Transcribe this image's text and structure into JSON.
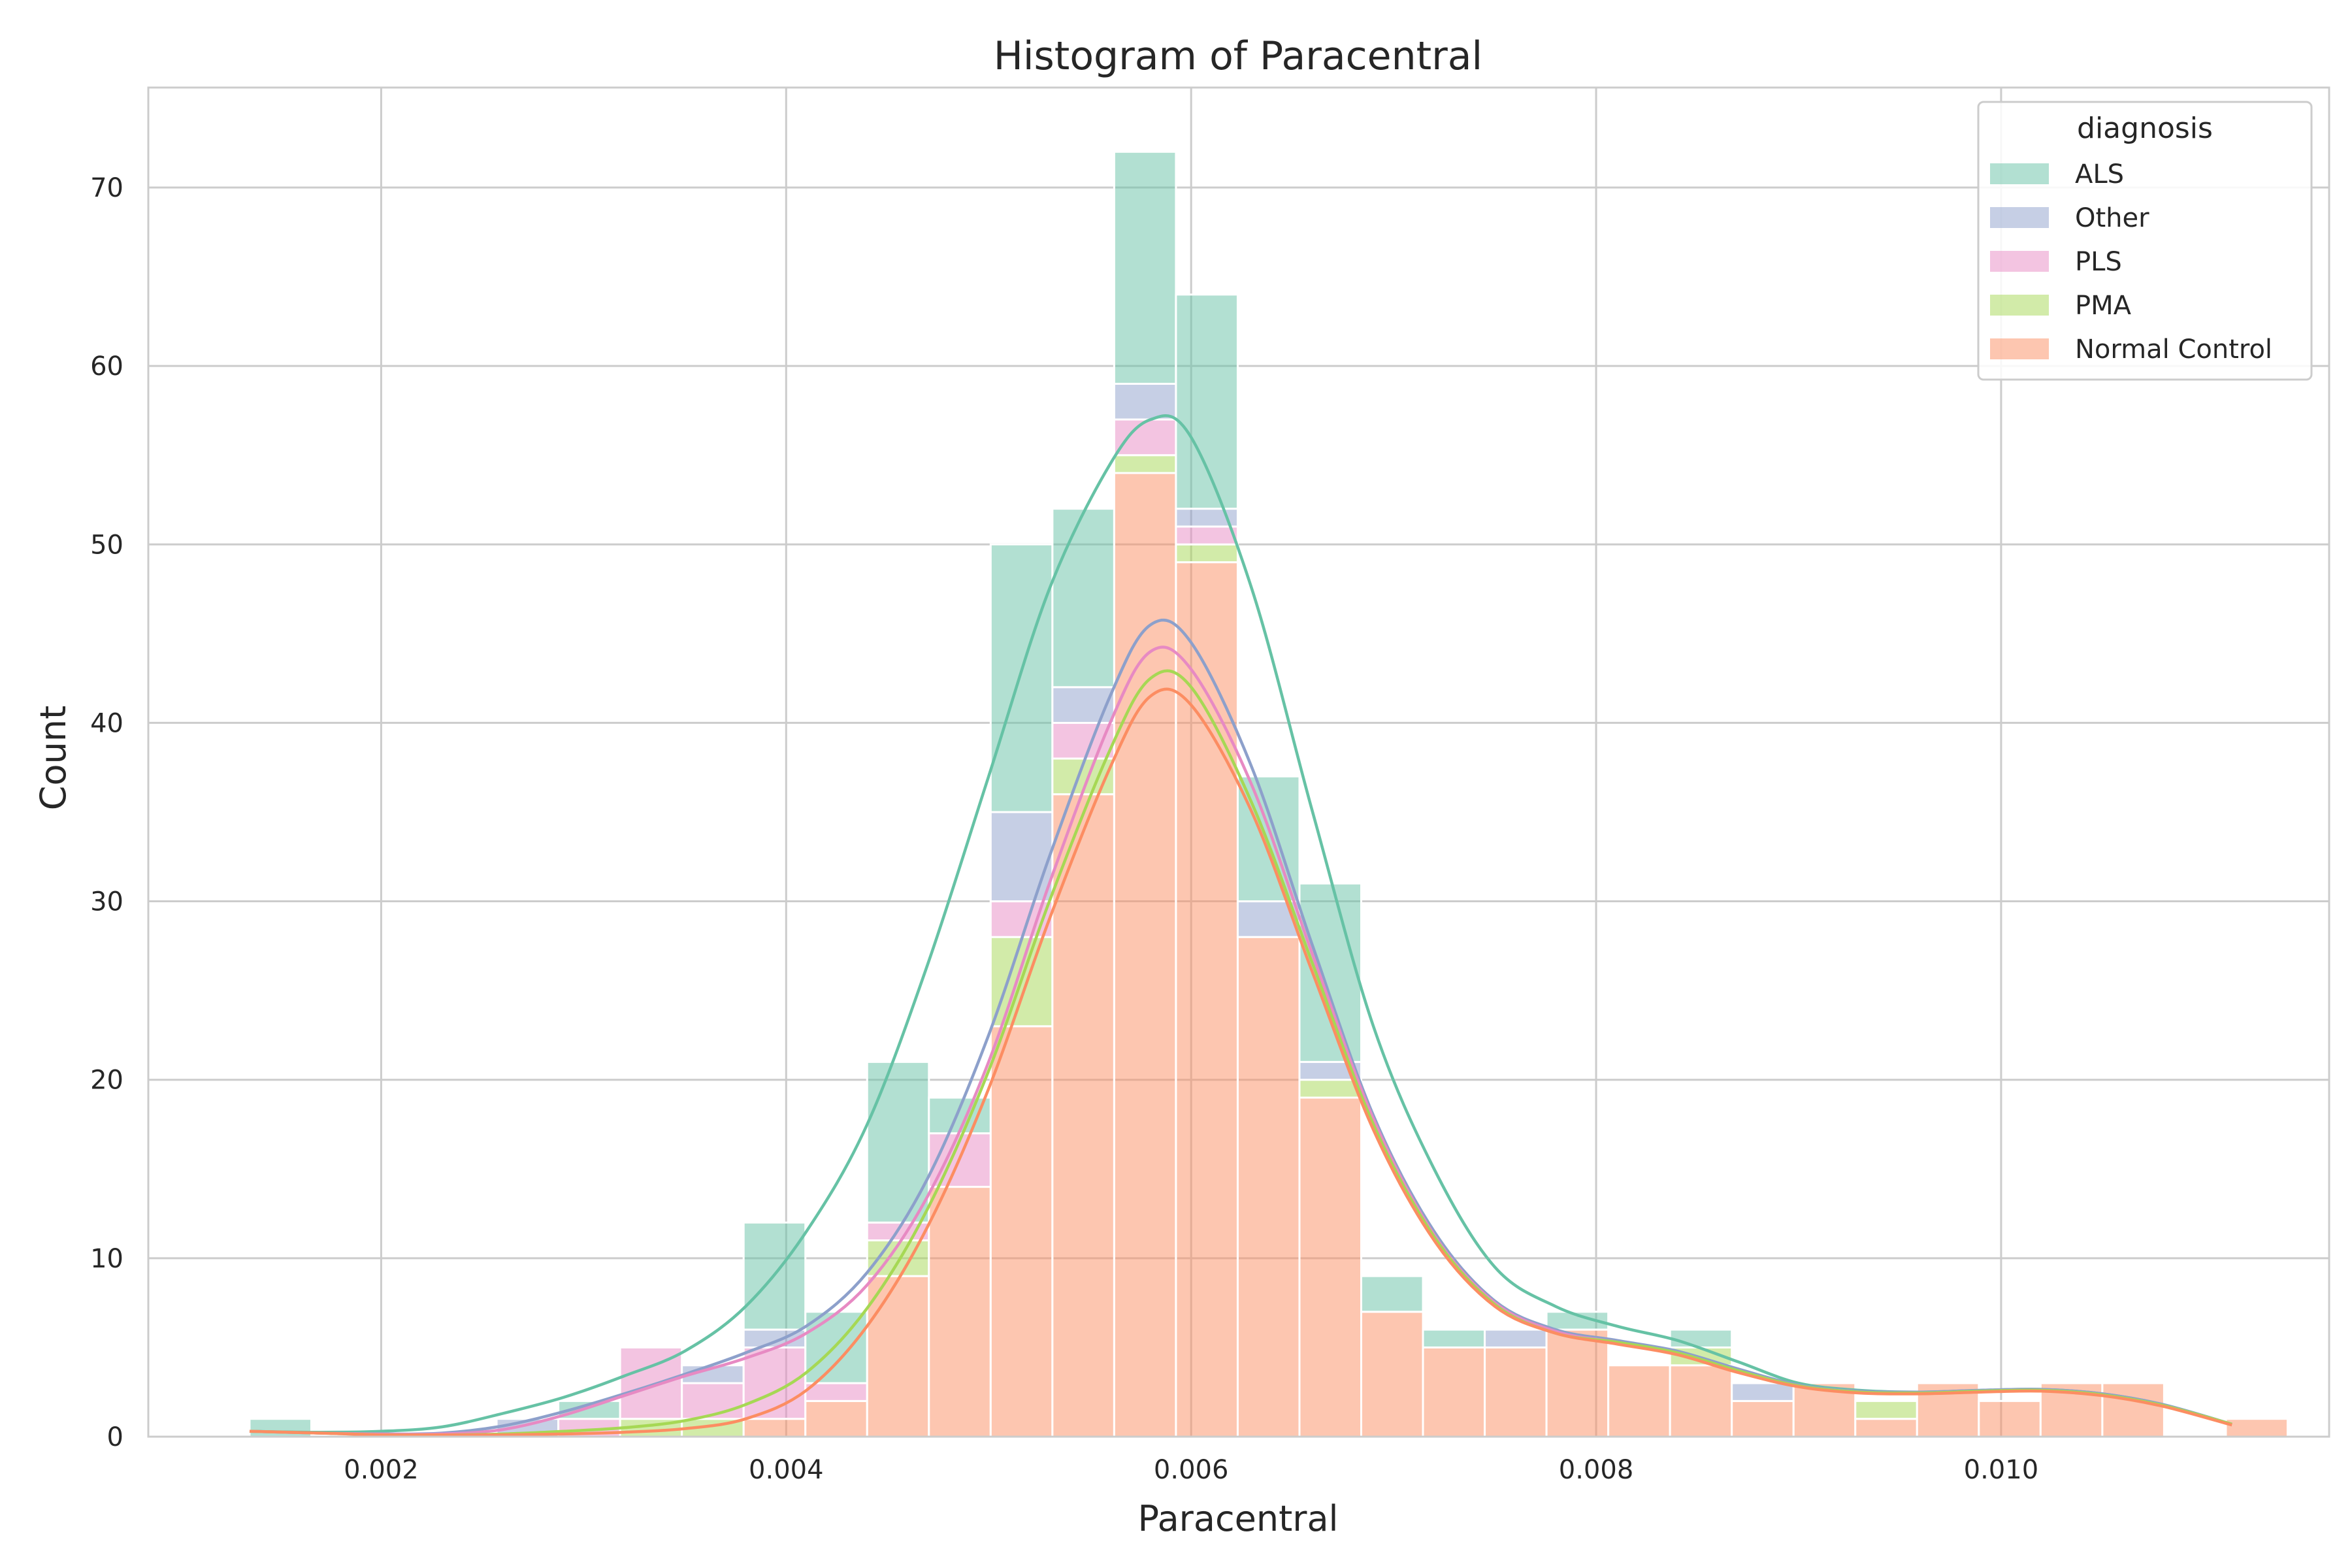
{
  "chart_data": {
    "type": "histogram",
    "title": "Histogram of Paracentral",
    "xlabel": "Paracentral",
    "ylabel": "Count",
    "xlim": [
      0.00085,
      0.01162
    ],
    "ylim": [
      0,
      75.6
    ],
    "xticks": [
      0.002,
      0.004,
      0.006,
      0.008,
      0.01
    ],
    "xtick_labels": [
      "0.002",
      "0.004",
      "0.006",
      "0.008",
      "0.010"
    ],
    "yticks": [
      0,
      10,
      20,
      30,
      40,
      50,
      60,
      70
    ],
    "ytick_labels": [
      "0",
      "10",
      "20",
      "30",
      "40",
      "50",
      "60",
      "70"
    ],
    "grid": true,
    "stacked": true,
    "legend": {
      "title": "diagnosis",
      "placement": "top-right"
    },
    "bin_edges": [
      0.00135,
      0.001655,
      0.00196,
      0.002265,
      0.00257,
      0.002875,
      0.00318,
      0.003485,
      0.00379,
      0.004095,
      0.0044,
      0.004705,
      0.00501,
      0.005315,
      0.00562,
      0.005925,
      0.00623,
      0.006535,
      0.00684,
      0.007145,
      0.00745,
      0.007755,
      0.00806,
      0.008365,
      0.00867,
      0.008975,
      0.00928,
      0.009585,
      0.00989,
      0.010195,
      0.0105,
      0.010805,
      0.01111,
      0.011415
    ],
    "stack_order": [
      "Normal Control",
      "PMA",
      "PLS",
      "Other",
      "ALS"
    ],
    "series": [
      {
        "name": "ALS",
        "color": "#66c2a5",
        "values": [
          1,
          0,
          0,
          0,
          0,
          1,
          0,
          0,
          6,
          4,
          9,
          2,
          15,
          10,
          13,
          12,
          7,
          10,
          2,
          1,
          0,
          1,
          0,
          1,
          0,
          0,
          0,
          0,
          0,
          0,
          0,
          0,
          0
        ],
        "kde": [
          [
            0.00135,
            0.3
          ],
          [
            0.0017,
            0.25
          ],
          [
            0.002,
            0.3
          ],
          [
            0.0023,
            0.55
          ],
          [
            0.0026,
            1.3
          ],
          [
            0.0029,
            2.2
          ],
          [
            0.0032,
            3.4
          ],
          [
            0.0035,
            4.8
          ],
          [
            0.0038,
            7.3
          ],
          [
            0.0041,
            11.5
          ],
          [
            0.0044,
            17.5
          ],
          [
            0.0047,
            26.5
          ],
          [
            0.005,
            37
          ],
          [
            0.0053,
            47.5
          ],
          [
            0.0056,
            54.5
          ],
          [
            0.0058,
            57
          ],
          [
            0.006,
            56
          ],
          [
            0.0063,
            47.5
          ],
          [
            0.0066,
            35
          ],
          [
            0.0069,
            23
          ],
          [
            0.0072,
            15
          ],
          [
            0.0075,
            9.5
          ],
          [
            0.0078,
            7.3
          ],
          [
            0.0081,
            6.2
          ],
          [
            0.0084,
            5.4
          ],
          [
            0.0087,
            4.2
          ],
          [
            0.009,
            3
          ],
          [
            0.0093,
            2.6
          ],
          [
            0.0096,
            2.5
          ],
          [
            0.0099,
            2.6
          ],
          [
            0.0102,
            2.65
          ],
          [
            0.0105,
            2.4
          ],
          [
            0.0108,
            1.8
          ],
          [
            0.01114,
            0.7
          ]
        ]
      },
      {
        "name": "Other",
        "color": "#8da0cb",
        "values": [
          0,
          0,
          0,
          0,
          1,
          0,
          0,
          1,
          1,
          0,
          0,
          0,
          5,
          2,
          2,
          1,
          2,
          1,
          0,
          0,
          1,
          0,
          0,
          0,
          1,
          0,
          0,
          0,
          0,
          0,
          0,
          0,
          0
        ],
        "kde": [
          [
            0.00135,
            0.3
          ],
          [
            0.0017,
            0.2
          ],
          [
            0.002,
            0.15
          ],
          [
            0.0023,
            0.2
          ],
          [
            0.0026,
            0.6
          ],
          [
            0.0029,
            1.4
          ],
          [
            0.0032,
            2.4
          ],
          [
            0.0035,
            3.5
          ],
          [
            0.0038,
            4.7
          ],
          [
            0.0041,
            6.2
          ],
          [
            0.0044,
            9.2
          ],
          [
            0.0047,
            14.5
          ],
          [
            0.005,
            22.5
          ],
          [
            0.0053,
            32.5
          ],
          [
            0.0056,
            41.5
          ],
          [
            0.0058,
            45.5
          ],
          [
            0.006,
            44.5
          ],
          [
            0.0063,
            37.5
          ],
          [
            0.0066,
            27.5
          ],
          [
            0.0069,
            18
          ],
          [
            0.0072,
            11.5
          ],
          [
            0.0075,
            7.6
          ],
          [
            0.0078,
            6
          ],
          [
            0.0081,
            5.4
          ],
          [
            0.0084,
            4.8
          ],
          [
            0.0087,
            3.8
          ],
          [
            0.009,
            2.9
          ],
          [
            0.0093,
            2.55
          ],
          [
            0.0096,
            2.5
          ],
          [
            0.0099,
            2.6
          ],
          [
            0.0102,
            2.65
          ],
          [
            0.0105,
            2.4
          ],
          [
            0.0108,
            1.8
          ],
          [
            0.01114,
            0.7
          ]
        ]
      },
      {
        "name": "PLS",
        "color": "#e78ac3",
        "values": [
          0,
          0,
          0,
          0,
          0,
          1,
          4,
          2,
          4,
          1,
          1,
          3,
          2,
          2,
          2,
          1,
          0,
          0,
          0,
          0,
          0,
          0,
          0,
          0,
          0,
          0,
          0,
          0,
          0,
          0,
          0,
          0,
          0
        ],
        "kde": [
          [
            0.00135,
            0.3
          ],
          [
            0.0017,
            0.2
          ],
          [
            0.002,
            0.15
          ],
          [
            0.0023,
            0.15
          ],
          [
            0.0026,
            0.4
          ],
          [
            0.0029,
            1.2
          ],
          [
            0.0032,
            2.3
          ],
          [
            0.0035,
            3.4
          ],
          [
            0.0038,
            4.4
          ],
          [
            0.0041,
            5.8
          ],
          [
            0.0044,
            8.5
          ],
          [
            0.0047,
            13.5
          ],
          [
            0.005,
            21
          ],
          [
            0.0053,
            31
          ],
          [
            0.0056,
            40
          ],
          [
            0.0058,
            44
          ],
          [
            0.006,
            43
          ],
          [
            0.0063,
            36.5
          ],
          [
            0.0066,
            27
          ],
          [
            0.0069,
            17.8
          ],
          [
            0.0072,
            11.3
          ],
          [
            0.0075,
            7.5
          ],
          [
            0.0078,
            5.9
          ],
          [
            0.0081,
            5.3
          ],
          [
            0.0084,
            4.7
          ],
          [
            0.0087,
            3.7
          ],
          [
            0.009,
            2.85
          ],
          [
            0.0093,
            2.5
          ],
          [
            0.0096,
            2.45
          ],
          [
            0.0099,
            2.55
          ],
          [
            0.0102,
            2.6
          ],
          [
            0.0105,
            2.35
          ],
          [
            0.0108,
            1.75
          ],
          [
            0.01114,
            0.7
          ]
        ]
      },
      {
        "name": "PMA",
        "color": "#a6d854",
        "values": [
          0,
          0,
          0,
          0,
          0,
          0,
          1,
          1,
          0,
          0,
          2,
          0,
          5,
          2,
          1,
          1,
          0,
          1,
          0,
          0,
          0,
          0,
          0,
          1,
          0,
          0,
          1,
          0,
          0,
          0,
          0,
          0,
          0
        ],
        "kde": [
          [
            0.00135,
            0.3
          ],
          [
            0.0017,
            0.2
          ],
          [
            0.002,
            0.1
          ],
          [
            0.0023,
            0.1
          ],
          [
            0.0026,
            0.15
          ],
          [
            0.0029,
            0.3
          ],
          [
            0.0032,
            0.5
          ],
          [
            0.0035,
            0.9
          ],
          [
            0.0038,
            1.8
          ],
          [
            0.0041,
            3.6
          ],
          [
            0.0044,
            7.2
          ],
          [
            0.0047,
            12.8
          ],
          [
            0.005,
            20.5
          ],
          [
            0.0053,
            30
          ],
          [
            0.0056,
            38.5
          ],
          [
            0.0058,
            42.5
          ],
          [
            0.006,
            42
          ],
          [
            0.0063,
            35.5
          ],
          [
            0.0066,
            26.5
          ],
          [
            0.0069,
            17.5
          ],
          [
            0.0072,
            11.2
          ],
          [
            0.0075,
            7.4
          ],
          [
            0.0078,
            5.8
          ],
          [
            0.0081,
            5.3
          ],
          [
            0.0084,
            4.7
          ],
          [
            0.0087,
            3.7
          ],
          [
            0.009,
            2.85
          ],
          [
            0.0093,
            2.5
          ],
          [
            0.0096,
            2.45
          ],
          [
            0.0099,
            2.55
          ],
          [
            0.0102,
            2.6
          ],
          [
            0.0105,
            2.35
          ],
          [
            0.0108,
            1.75
          ],
          [
            0.01114,
            0.7
          ]
        ]
      },
      {
        "name": "Normal Control",
        "color": "#fc8d62",
        "values": [
          0,
          0,
          0,
          0,
          0,
          0,
          0,
          0,
          1,
          2,
          9,
          14,
          23,
          36,
          54,
          49,
          28,
          19,
          7,
          5,
          5,
          6,
          4,
          4,
          2,
          3,
          1,
          3,
          2,
          3,
          3,
          0,
          1
        ],
        "kde": [
          [
            0.00135,
            0.3
          ],
          [
            0.0017,
            0.2
          ],
          [
            0.002,
            0.1
          ],
          [
            0.0023,
            0.1
          ],
          [
            0.0026,
            0.1
          ],
          [
            0.0029,
            0.15
          ],
          [
            0.0032,
            0.25
          ],
          [
            0.0035,
            0.45
          ],
          [
            0.0038,
            1
          ],
          [
            0.0041,
            2.6
          ],
          [
            0.0044,
            6.2
          ],
          [
            0.0047,
            11.8
          ],
          [
            0.005,
            19.5
          ],
          [
            0.0053,
            29
          ],
          [
            0.0056,
            37.5
          ],
          [
            0.0058,
            41.5
          ],
          [
            0.006,
            41
          ],
          [
            0.0063,
            35
          ],
          [
            0.0066,
            26
          ],
          [
            0.0069,
            17.2
          ],
          [
            0.0072,
            11
          ],
          [
            0.0075,
            7.3
          ],
          [
            0.0078,
            5.8
          ],
          [
            0.0081,
            5.2
          ],
          [
            0.0084,
            4.6
          ],
          [
            0.0087,
            3.6
          ],
          [
            0.009,
            2.8
          ],
          [
            0.0093,
            2.45
          ],
          [
            0.0096,
            2.4
          ],
          [
            0.0099,
            2.5
          ],
          [
            0.0102,
            2.55
          ],
          [
            0.0105,
            2.3
          ],
          [
            0.0108,
            1.7
          ],
          [
            0.01114,
            0.65
          ]
        ]
      }
    ]
  }
}
